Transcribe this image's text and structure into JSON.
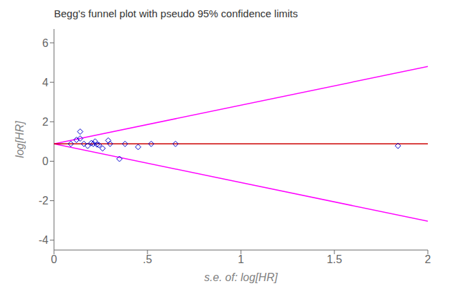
{
  "chart_data": {
    "type": "scatter",
    "title": "Begg's funnel plot with pseudo 95% confidence limits",
    "xlabel": "s.e. of: log[HR]",
    "ylabel": "log[HR]",
    "xlim": [
      0,
      2
    ],
    "xticks": [
      0,
      {
        "value": 0.5,
        "label": ".5"
      },
      1,
      1.5,
      2
    ],
    "ylim": [
      -4.5,
      6.7
    ],
    "yticks": [
      -4,
      -2,
      0,
      2,
      4,
      6
    ],
    "grid": false,
    "series": [
      {
        "type": "line",
        "color": "#FF00FF",
        "x": [
          0,
          2
        ],
        "values": [
          0.88,
          4.8
        ]
      },
      {
        "type": "line",
        "color": "#FF00FF",
        "x": [
          0,
          2
        ],
        "values": [
          0.88,
          -3.04
        ]
      },
      {
        "type": "line",
        "color": "#CC0000",
        "x": [
          0,
          2
        ],
        "values": [
          0.88,
          0.88
        ]
      },
      {
        "type": "scatter",
        "marker": "diamond",
        "color": "#0000CD",
        "x": [
          0.09,
          0.12,
          0.14,
          0.14,
          0.16,
          0.18,
          0.2,
          0.21,
          0.22,
          0.23,
          0.24,
          0.26,
          0.29,
          0.3,
          0.35,
          0.38,
          0.45,
          0.52,
          0.65,
          1.84
        ],
        "values": [
          0.88,
          1.08,
          1.5,
          1.15,
          0.88,
          0.78,
          0.92,
          0.88,
          1.0,
          0.85,
          0.82,
          0.65,
          1.05,
          0.88,
          0.12,
          0.88,
          0.72,
          0.88,
          0.88,
          0.78
        ]
      }
    ]
  }
}
